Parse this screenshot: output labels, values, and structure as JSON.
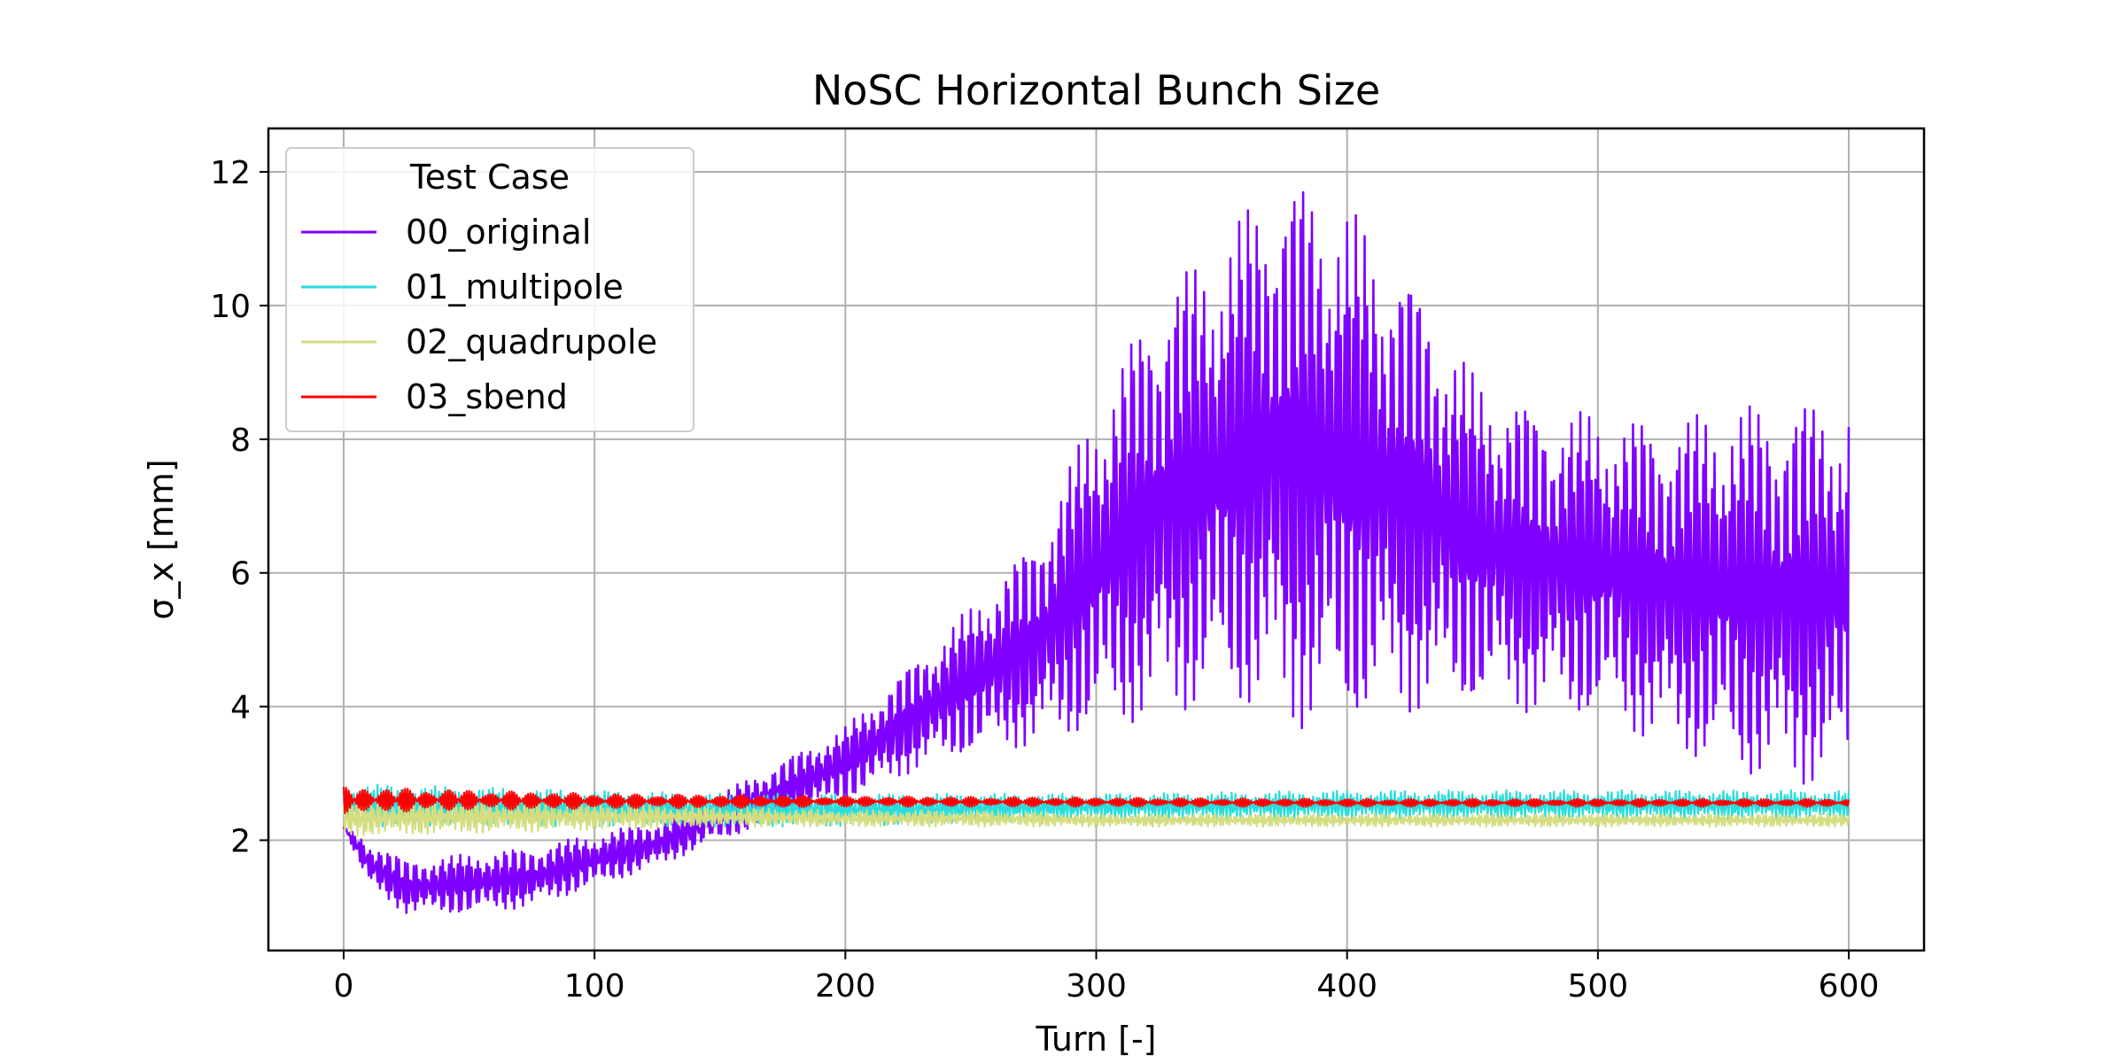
{
  "chart_data": {
    "type": "line",
    "title": "NoSC Horizontal Bunch Size",
    "xlabel": "Turn [-]",
    "ylabel": "σ_x [mm]",
    "xlim": [
      -30,
      630
    ],
    "ylim": [
      0.35,
      12.65
    ],
    "xticks": [
      0,
      100,
      200,
      300,
      400,
      500,
      600
    ],
    "yticks": [
      2,
      4,
      6,
      8,
      10,
      12
    ],
    "grid": true,
    "legend": {
      "title": "Test Case",
      "placement": "top-left"
    },
    "series": [
      {
        "name": "00_original",
        "color": "#7f00ff",
        "x": [
          0,
          10,
          25,
          50,
          75,
          100,
          125,
          150,
          175,
          200,
          225,
          250,
          275,
          300,
          325,
          350,
          370,
          385,
          400,
          425,
          450,
          475,
          500,
          525,
          550,
          575,
          600
        ],
        "y_max": [
          2.2,
          2.0,
          1.7,
          1.8,
          1.9,
          2.1,
          2.3,
          2.7,
          3.2,
          3.7,
          4.6,
          5.5,
          6.5,
          8.5,
          10.3,
          11.0,
          12.0,
          11.9,
          11.5,
          10.5,
          9.0,
          8.5,
          8.4,
          8.3,
          8.5,
          8.6,
          8.6
        ],
        "y_min": [
          2.2,
          1.3,
          0.9,
          0.9,
          1.0,
          1.3,
          1.6,
          2.0,
          2.3,
          2.6,
          3.0,
          3.3,
          3.4,
          3.6,
          3.8,
          4.0,
          3.8,
          3.6,
          3.7,
          3.9,
          4.0,
          3.9,
          3.8,
          3.4,
          3.0,
          2.8,
          2.8
        ]
      },
      {
        "name": "01_multipole",
        "color": "#2adddd",
        "x": [
          0,
          50,
          100,
          150,
          200,
          250,
          300,
          350,
          400,
          450,
          500,
          550,
          600
        ],
        "y_max": [
          2.85,
          2.8,
          2.75,
          2.7,
          2.7,
          2.7,
          2.7,
          2.72,
          2.75,
          2.75,
          2.75,
          2.75,
          2.75
        ],
        "y_min": [
          2.2,
          2.2,
          2.2,
          2.2,
          2.2,
          2.25,
          2.3,
          2.3,
          2.3,
          2.3,
          2.3,
          2.3,
          2.3
        ]
      },
      {
        "name": "02_quadrupole",
        "color": "#d4dd80",
        "x": [
          0,
          50,
          100,
          150,
          200,
          250,
          300,
          350,
          400,
          450,
          500,
          550,
          600
        ],
        "y_max": [
          2.6,
          2.6,
          2.55,
          2.5,
          2.45,
          2.45,
          2.4,
          2.4,
          2.4,
          2.4,
          2.4,
          2.4,
          2.4
        ],
        "y_min": [
          2.05,
          2.1,
          2.15,
          2.2,
          2.2,
          2.2,
          2.2,
          2.2,
          2.2,
          2.2,
          2.2,
          2.2,
          2.2
        ]
      },
      {
        "name": "03_sbend",
        "color": "#ff0000",
        "x": [
          0,
          50,
          100,
          150,
          200,
          250,
          300,
          350,
          400,
          450,
          500,
          550,
          600
        ],
        "y_max": [
          2.8,
          2.75,
          2.7,
          2.68,
          2.66,
          2.65,
          2.64,
          2.63,
          2.62,
          2.62,
          2.62,
          2.62,
          2.62
        ],
        "y_min": [
          2.4,
          2.45,
          2.47,
          2.48,
          2.5,
          2.5,
          2.5,
          2.5,
          2.5,
          2.5,
          2.5,
          2.5,
          2.5
        ]
      }
    ]
  }
}
